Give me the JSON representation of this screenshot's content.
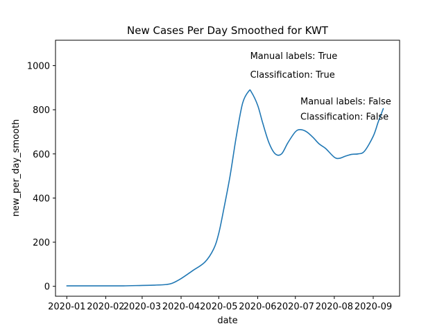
{
  "chart_data": {
    "type": "line",
    "title": "New Cases Per Day Smoothed for KWT",
    "xlabel": "date",
    "ylabel": "new_per_day_smooth",
    "x_ticks": [
      "2020-01",
      "2020-02",
      "2020-03",
      "2020-04",
      "2020-05",
      "2020-06",
      "2020-07",
      "2020-08",
      "2020-09"
    ],
    "y_ticks": [
      0,
      200,
      400,
      600,
      800,
      1000
    ],
    "xlim": [
      "2019-12-23",
      "2020-09-22"
    ],
    "ylim": [
      -45,
      1115
    ],
    "grid": false,
    "series": [
      {
        "color": "#1f77b4",
        "x": [
          "2020-01-01",
          "2020-01-15",
          "2020-02-01",
          "2020-02-15",
          "2020-03-01",
          "2020-03-10",
          "2020-03-20",
          "2020-03-25",
          "2020-04-01",
          "2020-04-10",
          "2020-04-20",
          "2020-04-27",
          "2020-05-01",
          "2020-05-05",
          "2020-05-10",
          "2020-05-15",
          "2020-05-20",
          "2020-05-25",
          "2020-05-27",
          "2020-06-01",
          "2020-06-05",
          "2020-06-10",
          "2020-06-15",
          "2020-06-20",
          "2020-06-25",
          "2020-07-01",
          "2020-07-05",
          "2020-07-10",
          "2020-07-15",
          "2020-07-20",
          "2020-07-25",
          "2020-08-01",
          "2020-08-05",
          "2020-08-10",
          "2020-08-15",
          "2020-08-20",
          "2020-08-25",
          "2020-09-01",
          "2020-09-05",
          "2020-09-09"
        ],
        "y": [
          2,
          2,
          2,
          2,
          4,
          5,
          8,
          14,
          35,
          70,
          110,
          170,
          240,
          350,
          500,
          680,
          830,
          885,
          880,
          820,
          740,
          650,
          600,
          600,
          650,
          700,
          710,
          700,
          675,
          645,
          625,
          585,
          580,
          590,
          598,
          600,
          612,
          680,
          745,
          805
        ]
      }
    ],
    "annotations": [
      {
        "text": "Manual labels: True",
        "x": "2020-05-26",
        "y": 1030
      },
      {
        "text": "Classification: True",
        "x": "2020-05-26",
        "y": 945
      },
      {
        "text": "Manual labels: False",
        "x": "2020-07-05",
        "y": 825
      },
      {
        "text": "Classification: False",
        "x": "2020-07-05",
        "y": 755
      }
    ]
  }
}
